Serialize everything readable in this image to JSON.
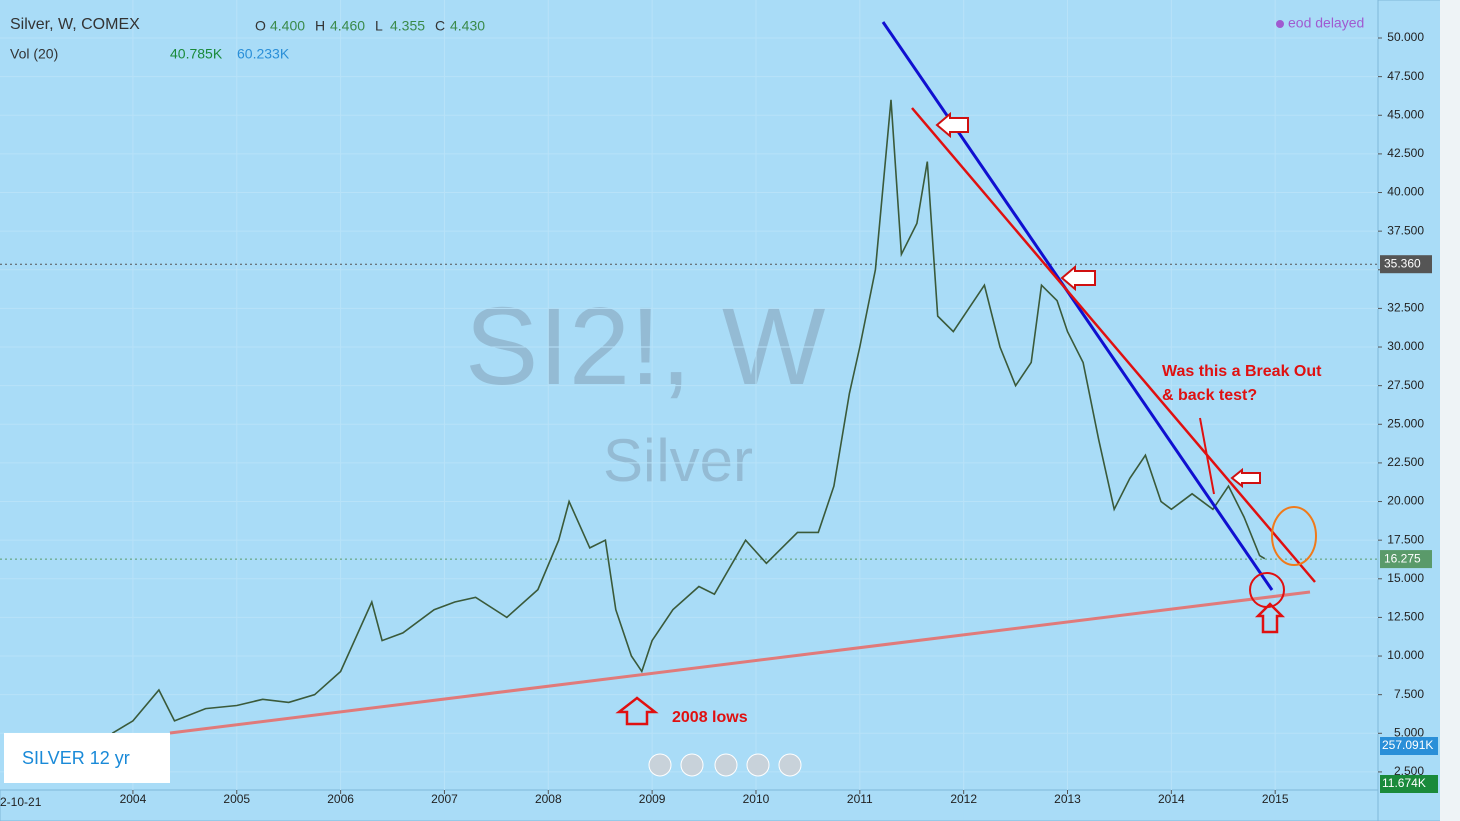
{
  "chart_data": {
    "type": "line",
    "title": "Silver, W, COMEX",
    "ohlc": [
      {
        "key": "O",
        "value": "4.400"
      },
      {
        "key": "H",
        "value": "4.460"
      },
      {
        "key": "L",
        "value": "4.355"
      },
      {
        "key": "C",
        "value": "4.430"
      }
    ],
    "volume_title": "Vol (20)",
    "volume_values": [
      "40.785K",
      "60.233K"
    ],
    "status": "eod delayed",
    "watermark": "SI2!, W",
    "watermark_sub": "Silver",
    "annotations": {
      "breakout": [
        "Was this a Break Out",
        "& back test?"
      ],
      "lows": "2008 lows",
      "badge": "SILVER 12 yr"
    },
    "date_cut": "2-10-21",
    "x": [
      2003.8,
      2004.0,
      2004.25,
      2004.4,
      2004.7,
      2005.0,
      2005.25,
      2005.5,
      2005.75,
      2006.0,
      2006.3,
      2006.4,
      2006.6,
      2006.9,
      2007.1,
      2007.3,
      2007.6,
      2007.9,
      2008.1,
      2008.2,
      2008.4,
      2008.55,
      2008.65,
      2008.8,
      2008.9,
      2009.0,
      2009.2,
      2009.45,
      2009.6,
      2009.9,
      2010.1,
      2010.4,
      2010.6,
      2010.75,
      2010.9,
      2011.0,
      2011.15,
      2011.3,
      2011.4,
      2011.55,
      2011.65,
      2011.75,
      2011.9,
      2012.1,
      2012.2,
      2012.35,
      2012.5,
      2012.65,
      2012.75,
      2012.9,
      2013.0,
      2013.15,
      2013.3,
      2013.45,
      2013.6,
      2013.75,
      2013.9,
      2014.0,
      2014.2,
      2014.4,
      2014.55,
      2014.7,
      2014.85,
      2014.9
    ],
    "values": [
      5.0,
      5.8,
      7.8,
      5.8,
      6.6,
      6.8,
      7.2,
      7.0,
      7.5,
      9.0,
      13.5,
      11.0,
      11.5,
      13.0,
      13.5,
      13.8,
      12.5,
      14.3,
      17.5,
      20.0,
      17.0,
      17.5,
      13.0,
      10.0,
      9.0,
      11.0,
      13.0,
      14.5,
      14.0,
      17.5,
      16.0,
      18.0,
      18.0,
      21.0,
      27.0,
      30.0,
      35.0,
      46.0,
      36.0,
      38.0,
      42.0,
      32.0,
      31.0,
      33.0,
      34.0,
      30.0,
      27.5,
      29.0,
      34.0,
      33.0,
      31.0,
      29.0,
      24.0,
      19.5,
      21.5,
      23.0,
      20.0,
      19.5,
      20.5,
      19.5,
      21.0,
      19.0,
      16.5,
      16.3
    ],
    "color": "#3a5a3a",
    "xlim": [
      2002.72,
      2015.99
    ],
    "xticks": [
      2004,
      2005,
      2006,
      2007,
      2008,
      2009,
      2010,
      2011,
      2012,
      2013,
      2014,
      2015
    ],
    "ylim": [
      1.33,
      52.46
    ],
    "yticks": [
      {
        "value": 2.5,
        "label": "2.500"
      },
      {
        "value": 5,
        "label": "5.000"
      },
      {
        "value": 7.5,
        "label": "7.500"
      },
      {
        "value": 10,
        "label": "10.000"
      },
      {
        "value": 12.5,
        "label": "12.500"
      },
      {
        "value": 15,
        "label": "15.000"
      },
      {
        "value": 17.5,
        "label": "17.500"
      },
      {
        "value": 20,
        "label": "20.000"
      },
      {
        "value": 22.5,
        "label": "22.500"
      },
      {
        "value": 25,
        "label": "25.000"
      },
      {
        "value": 27.5,
        "label": "27.500"
      },
      {
        "value": 30,
        "label": "30.000"
      },
      {
        "value": 32.5,
        "label": "32.500"
      },
      {
        "value": 35,
        "label": "35.000"
      },
      {
        "value": 37.5,
        "label": "37.500"
      },
      {
        "value": 40,
        "label": "40.000"
      },
      {
        "value": 42.5,
        "label": "42.500"
      },
      {
        "value": 45,
        "label": "45.000"
      },
      {
        "value": 47.5,
        "label": "47.500"
      },
      {
        "value": 50,
        "label": "50.000"
      }
    ],
    "price_lines": [
      {
        "value": 35.36,
        "label": "35.360",
        "color": "#555"
      },
      {
        "value": 16.275,
        "label": "16.275",
        "color": "#5a9a6a"
      }
    ],
    "volume_labels": [
      {
        "text": "257.091K",
        "color": "#2a8fd8"
      },
      {
        "text": "11.674K",
        "color": "#1a8a3a"
      }
    ]
  }
}
